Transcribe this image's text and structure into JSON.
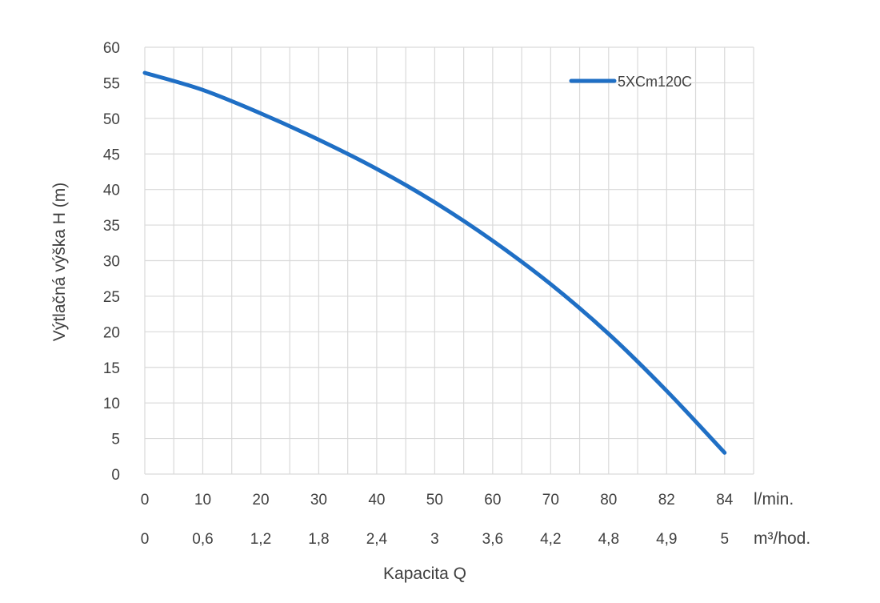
{
  "chart_data": {
    "type": "line",
    "ylabel": "Výtlačná výška H (m)",
    "xlabel": "Kapacita Q",
    "ylim": [
      0,
      60
    ],
    "yticks": [
      "0",
      "5",
      "10",
      "15",
      "20",
      "25",
      "30",
      "35",
      "40",
      "45",
      "50",
      "55",
      "60"
    ],
    "x_lmin_ticks": [
      "0",
      "10",
      "20",
      "30",
      "40",
      "50",
      "60",
      "70",
      "80",
      "82",
      "84"
    ],
    "x_m3h_ticks": [
      "0",
      "0,6",
      "1,2",
      "1,8",
      "2,4",
      "3",
      "3,6",
      "4,2",
      "4,8",
      "4,9",
      "5"
    ],
    "x_unit_lmin": "l/min.",
    "x_unit_m3h": "m³/hod.",
    "grid": true,
    "legend_position": "top-right",
    "series": [
      {
        "name": "5XCm120C",
        "color": "#1f6fc5",
        "x": [
          0,
          10,
          20,
          30,
          40,
          50,
          60,
          70,
          80,
          82,
          84
        ],
        "y": [
          56.4,
          54.0,
          50.7,
          47.0,
          42.9,
          38.2,
          32.8,
          26.7,
          19.7,
          11.7,
          3.0
        ]
      }
    ]
  }
}
